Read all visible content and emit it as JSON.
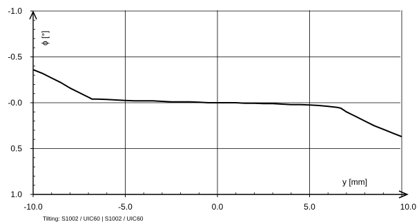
{
  "chart_data": {
    "type": "line",
    "caption": "Tilting: S1002 / UIC60 |  S1002 / UIC60",
    "xlabel": "y [mm]",
    "ylabel": "ϕ [°]",
    "xlim": [
      -10,
      10
    ],
    "ylim": [
      -1,
      1
    ],
    "y_inverted": true,
    "grid": true,
    "xticks": [
      -10,
      -5,
      0,
      5,
      10
    ],
    "xtick_labels": [
      "-10.0",
      "-5.0",
      "0.0",
      "5.0",
      "10.0"
    ],
    "yticks": [
      -1,
      -0.5,
      0,
      0.5,
      1
    ],
    "ytick_labels": [
      "-1.0",
      "-0.5",
      "-0.0",
      "0.5",
      "1.0"
    ],
    "colors": {
      "line": "#000000",
      "grid": "#000000"
    },
    "series": [
      {
        "x": [
          -10.0,
          -9.5,
          -9.0,
          -8.5,
          -8.0,
          -7.5,
          -7.0,
          -6.8,
          -6.5,
          -6.0,
          -5.5,
          -5.0,
          -4.5,
          -4.0,
          -3.5,
          -3.0,
          -2.5,
          -2.0,
          -1.5,
          -1.0,
          -0.5,
          0.0,
          0.5,
          1.0,
          1.5,
          2.0,
          2.5,
          3.0,
          3.5,
          4.0,
          4.5,
          5.0,
          5.5,
          6.0,
          6.5,
          6.7,
          7.0,
          7.5,
          8.0,
          8.5,
          9.0,
          9.5,
          10.0
        ],
        "y": [
          -0.36,
          -0.32,
          -0.27,
          -0.22,
          -0.16,
          -0.11,
          -0.06,
          -0.04,
          -0.04,
          -0.035,
          -0.03,
          -0.025,
          -0.02,
          -0.02,
          -0.02,
          -0.015,
          -0.01,
          -0.01,
          -0.01,
          -0.005,
          0.0,
          0.0,
          0.0,
          0.0,
          0.005,
          0.005,
          0.01,
          0.01,
          0.015,
          0.02,
          0.02,
          0.025,
          0.03,
          0.04,
          0.05,
          0.06,
          0.1,
          0.15,
          0.2,
          0.25,
          0.29,
          0.33,
          0.37
        ]
      }
    ]
  }
}
